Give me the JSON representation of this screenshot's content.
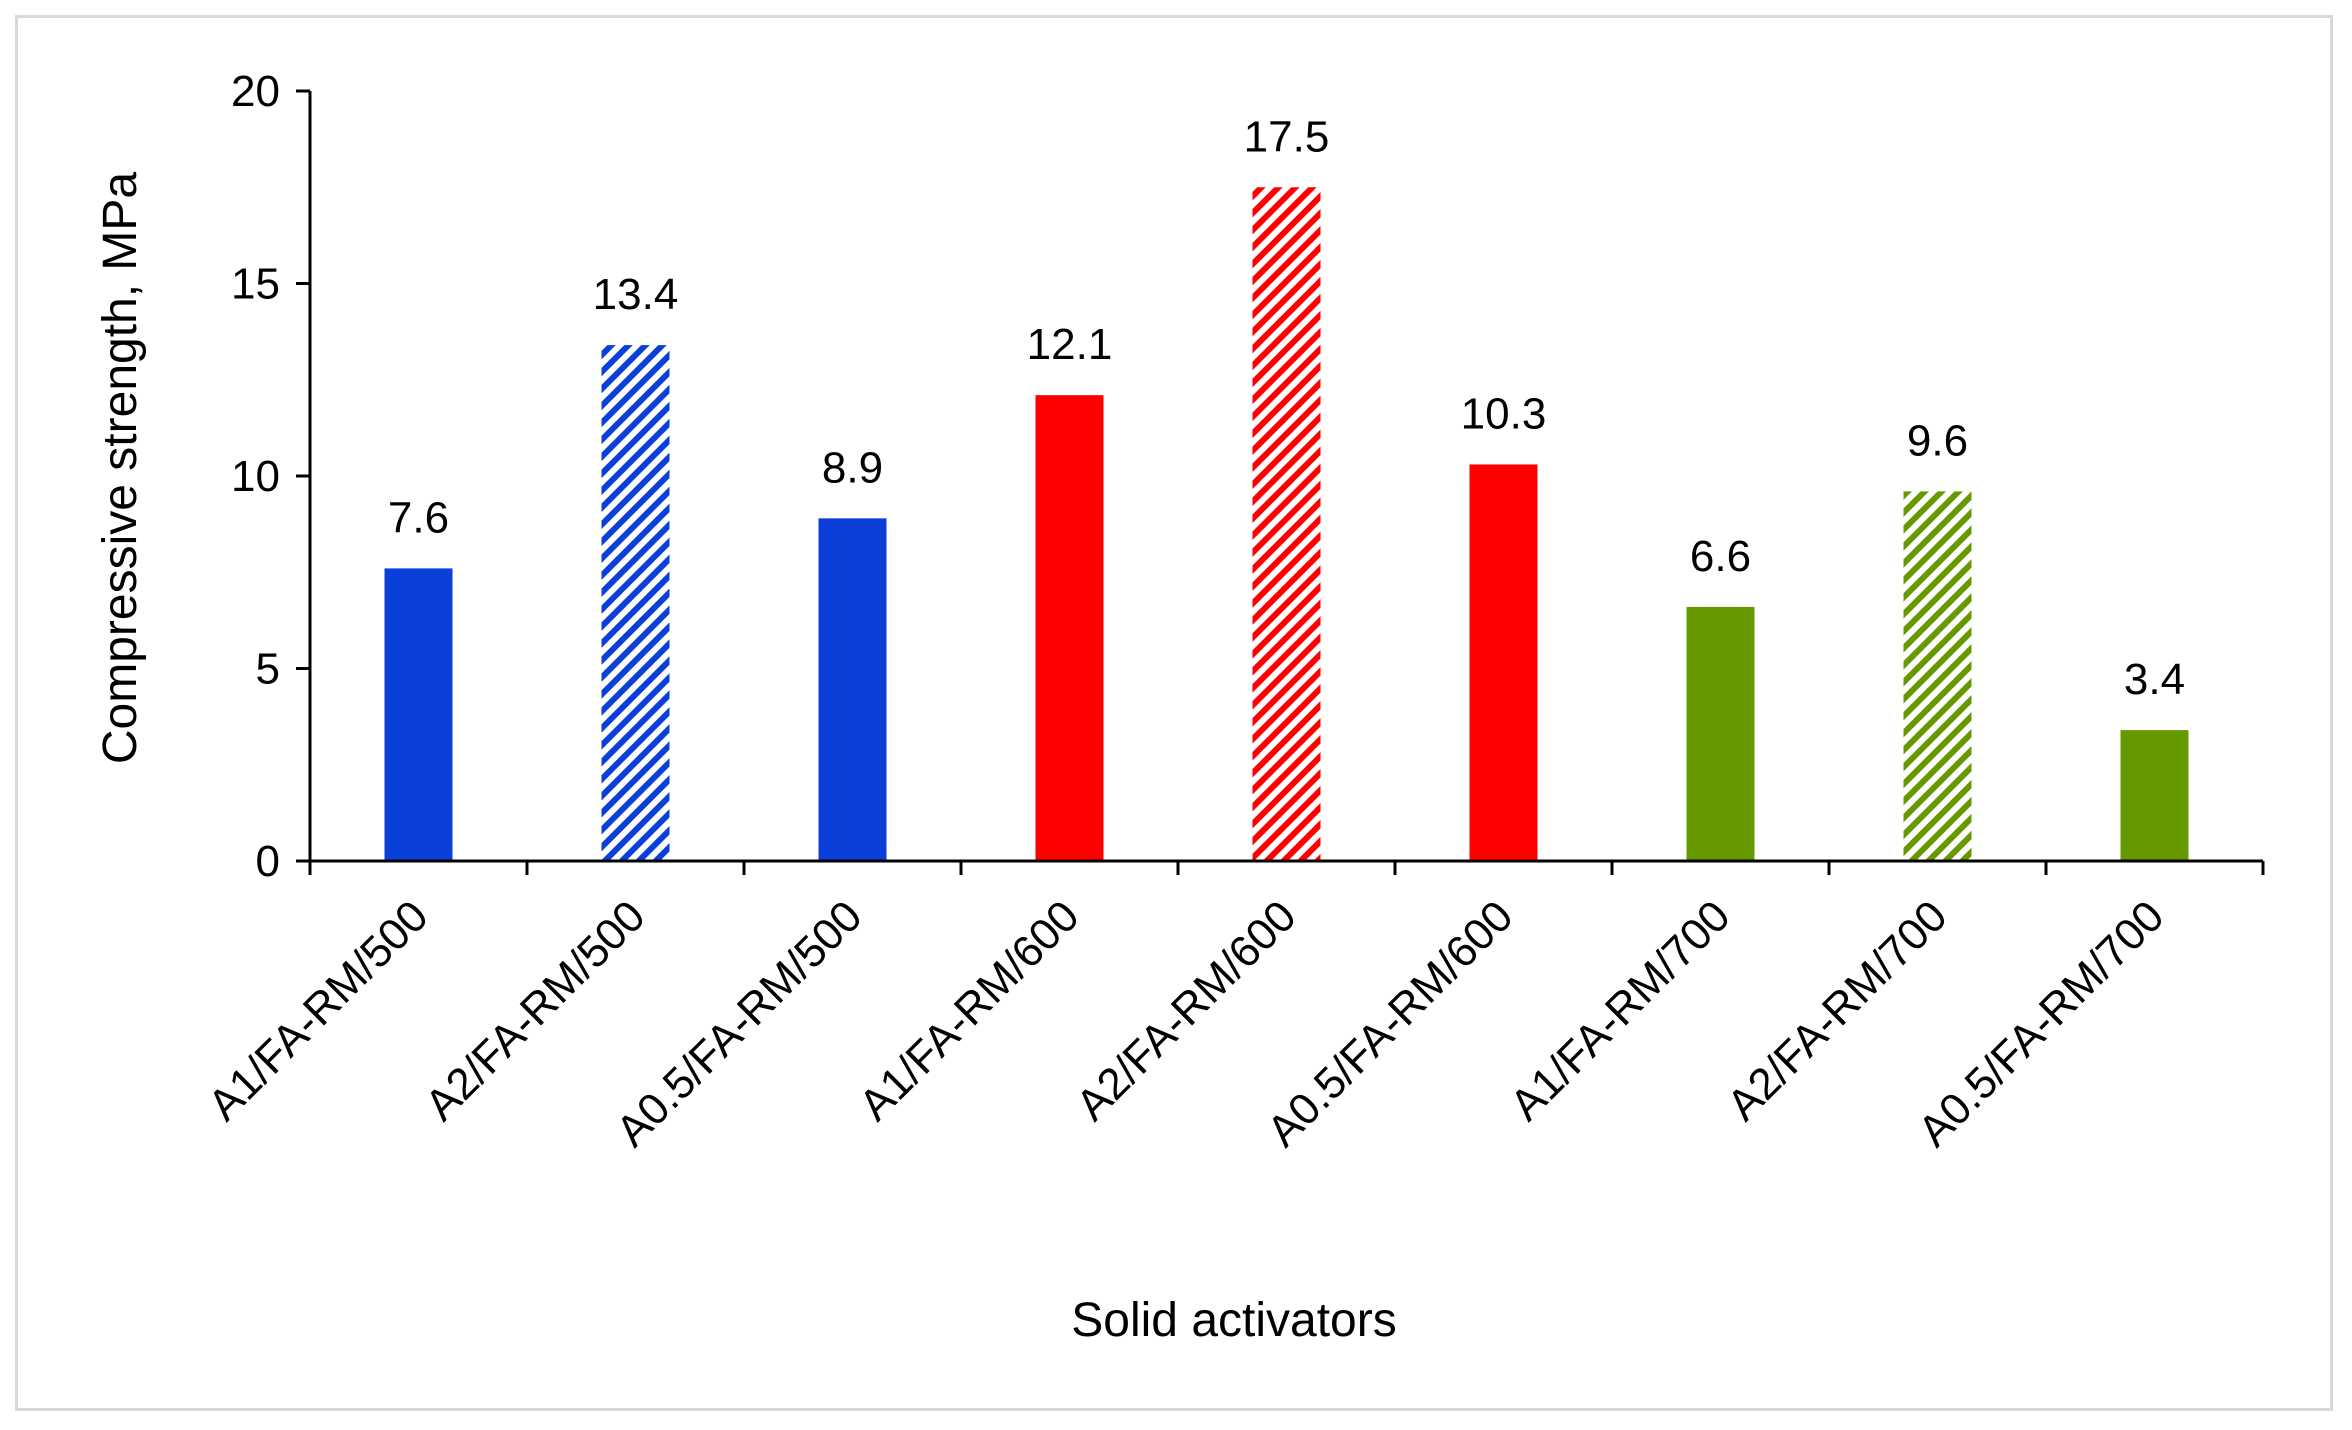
{
  "chart_data": {
    "type": "bar",
    "title": "",
    "xlabel": "Solid activators",
    "ylabel": "Compressive strength, MPa",
    "ylim": [
      0,
      20
    ],
    "yticks": [
      0,
      5,
      10,
      15,
      20
    ],
    "grid": false,
    "legend": "none",
    "categories": [
      "A1/FA-RM/500",
      "A2/FA-RM/500",
      "A0.5/FA-RM/500",
      "A1/FA-RM/600",
      "A2/FA-RM/600",
      "A0.5/FA-RM/600",
      "A1/FA-RM/700",
      "A2/FA-RM/700",
      "A0.5/FA-RM/700"
    ],
    "values": [
      7.6,
      13.4,
      8.9,
      12.1,
      17.5,
      10.3,
      6.6,
      9.6,
      3.4
    ],
    "data_labels": [
      "7.6",
      "13.4",
      "8.9",
      "12.1",
      "17.5",
      "10.3",
      "6.6",
      "9.6",
      "3.4"
    ],
    "bar_colors": [
      "#0b3fd9",
      "#0b3fd9",
      "#0b3fd9",
      "#ff0000",
      "#ff0000",
      "#ff0000",
      "#669900",
      "#669900",
      "#669900"
    ],
    "bar_fill_styles": [
      "solid",
      "hatched",
      "solid",
      "solid",
      "hatched",
      "solid",
      "solid",
      "hatched",
      "solid"
    ]
  }
}
